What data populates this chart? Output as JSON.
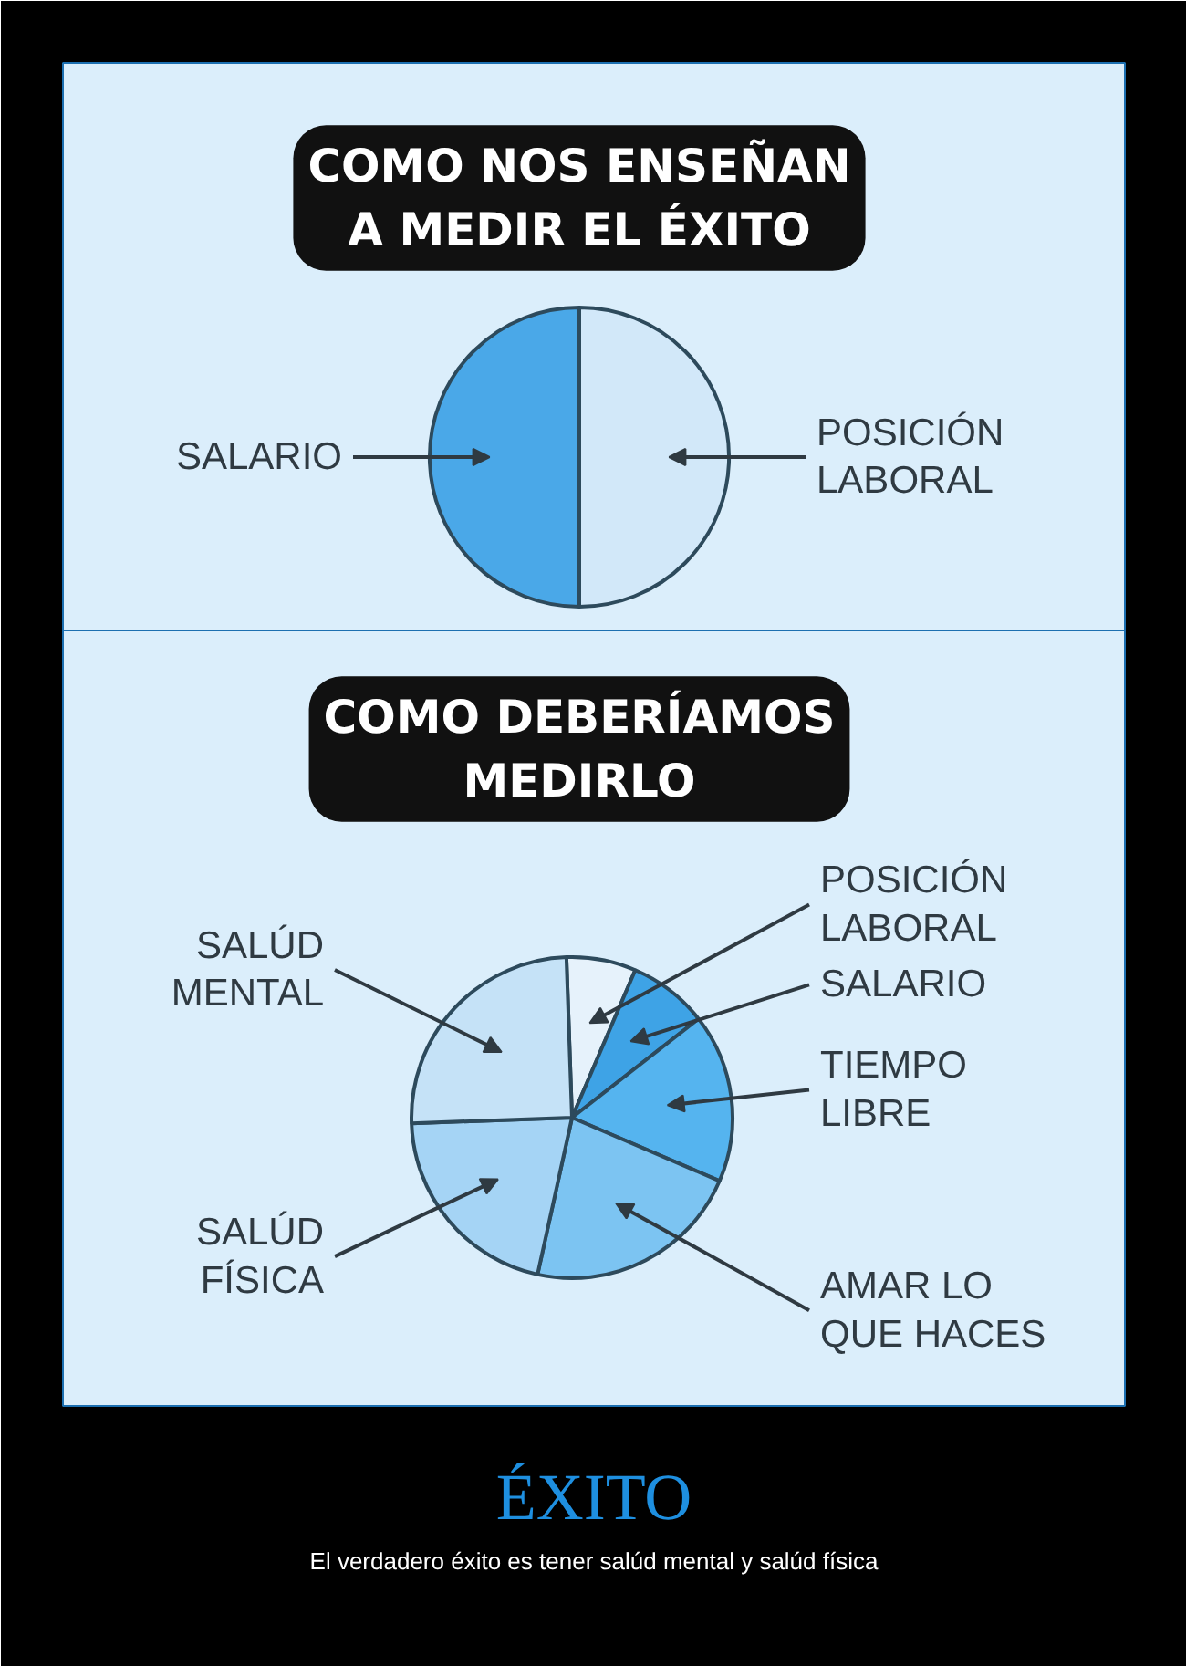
{
  "chart_data": [
    {
      "type": "pie",
      "title": "COMO NOS ENSEÑAN A MEDIR EL ÉXITO",
      "categories": [
        "POSICIÓN LABORAL",
        "SALARIO"
      ],
      "values": [
        50,
        50
      ],
      "colors": [
        "#d2e8f9",
        "#4aa8e8"
      ]
    },
    {
      "type": "pie",
      "title": "COMO DEBERÍAMOS MEDIRLO",
      "categories": [
        "POSICIÓN LABORAL",
        "SALARIO",
        "TIEMPO LIBRE",
        "AMAR LO QUE HACES",
        "SALÚD FÍSICA",
        "SALÚD MENTAL"
      ],
      "values": [
        7,
        8,
        17,
        22,
        21,
        25
      ],
      "colors": [
        "#e6f2fb",
        "#3ea3e6",
        "#55b4ef",
        "#7cc4f2",
        "#a5d4f5",
        "#c5e2f7"
      ],
      "annotations": [
        "ÉXITO",
        "El verdadero éxito es tener salúd mental y salúd física"
      ]
    }
  ]
}
